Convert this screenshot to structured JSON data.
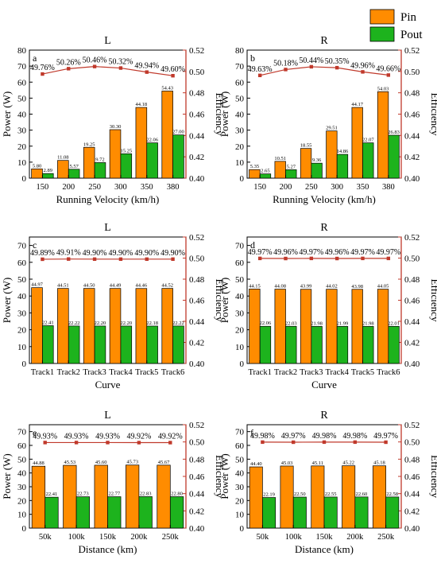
{
  "legend": {
    "items": [
      {
        "label": "Pin",
        "color": "#ff8c00"
      },
      {
        "label": "Pout",
        "color": "#1db31d"
      }
    ]
  },
  "colors": {
    "pin": "#ff8c00",
    "pout": "#1db31d",
    "efficiency": "#c0392b",
    "efficiency_axis": "#c0392b"
  },
  "chart_data": [
    {
      "type": "bar",
      "panel": "a",
      "title": "L",
      "xlabel": "Running Velocity (km/h)",
      "ylabel": "Power (W)",
      "y2label": "Efficiency",
      "ylim": [
        0,
        80
      ],
      "yticks": [
        0,
        10,
        20,
        30,
        40,
        50,
        60,
        70,
        80
      ],
      "y2lim": [
        0.4,
        0.52
      ],
      "y2ticks": [
        "0.40",
        "0.42",
        "0.44",
        "0.46",
        "0.48",
        "0.50",
        "0.52"
      ],
      "categories": [
        "150",
        "200",
        "250",
        "300",
        "350",
        "380"
      ],
      "series": [
        {
          "name": "Pin",
          "values": [
            5.8,
            11.08,
            19.25,
            30.3,
            44.18,
            54.43
          ],
          "labels": [
            "5.80",
            "11.08",
            "19.25",
            "30.30",
            "44.18",
            "54.43"
          ]
        },
        {
          "name": "Pout",
          "values": [
            2.89,
            5.57,
            9.72,
            15.25,
            22.06,
            27.0
          ],
          "labels": [
            "2.89",
            "5.57",
            "9.72",
            "15.25",
            "22.06",
            "27.00"
          ]
        }
      ],
      "efficiency": {
        "values": [
          0.4976,
          0.5026,
          0.5046,
          0.5032,
          0.4994,
          0.496
        ],
        "labels": [
          "49.76%",
          "50.26%",
          "50.46%",
          "50.32%",
          "49.94%",
          "49.60%"
        ]
      }
    },
    {
      "type": "bar",
      "panel": "b",
      "title": "R",
      "xlabel": "Running Velocity (km/h)",
      "ylabel": "Power (W)",
      "y2label": "Efficiency",
      "ylim": [
        0,
        80
      ],
      "yticks": [
        0,
        10,
        20,
        30,
        40,
        50,
        60,
        70,
        80
      ],
      "y2lim": [
        0.4,
        0.52
      ],
      "y2ticks": [
        "0.40",
        "0.42",
        "0.44",
        "0.46",
        "0.48",
        "0.50",
        "0.52"
      ],
      "categories": [
        "150",
        "200",
        "250",
        "300",
        "350",
        "380"
      ],
      "series": [
        {
          "name": "Pin",
          "values": [
            5.35,
            10.51,
            18.55,
            29.51,
            44.17,
            54.03
          ],
          "labels": [
            "5.35",
            "10.51",
            "18.55",
            "29.51",
            "44.17",
            "54.03"
          ]
        },
        {
          "name": "Pout",
          "values": [
            2.65,
            5.27,
            9.36,
            14.86,
            22.07,
            26.83
          ],
          "labels": [
            "2.65",
            "5.27",
            "9.36",
            "14.86",
            "22.07",
            "26.83"
          ]
        }
      ],
      "efficiency": {
        "values": [
          0.4963,
          0.5018,
          0.5044,
          0.5035,
          0.4996,
          0.4966
        ],
        "labels": [
          "49.63%",
          "50.18%",
          "50.44%",
          "50.35%",
          "49.96%",
          "49.66%"
        ]
      }
    },
    {
      "type": "bar",
      "panel": "c",
      "title": "L",
      "xlabel": "Curve",
      "ylabel": "Power (W)",
      "y2label": "Efficiency",
      "ylim": [
        0,
        75
      ],
      "yticks": [
        0,
        10,
        20,
        30,
        40,
        50,
        60,
        70
      ],
      "y2lim": [
        0.4,
        0.52
      ],
      "y2ticks": [
        "0.40",
        "0.42",
        "0.44",
        "0.46",
        "0.48",
        "0.50",
        "0.52"
      ],
      "categories": [
        "Track1",
        "Track2",
        "Track3",
        "Track4",
        "Track5",
        "Track6"
      ],
      "series": [
        {
          "name": "Pin",
          "values": [
            44.97,
            44.51,
            44.5,
            44.49,
            44.46,
            44.52
          ],
          "labels": [
            "44.97",
            "44.51",
            "44.50",
            "44.49",
            "44.46",
            "44.52"
          ]
        },
        {
          "name": "Pout",
          "values": [
            22.41,
            22.22,
            22.2,
            22.2,
            22.18,
            22.22
          ],
          "labels": [
            "22.41",
            "22.22",
            "22.20",
            "22.20",
            "22.18",
            "22.22"
          ]
        }
      ],
      "efficiency": {
        "values": [
          0.4989,
          0.4991,
          0.499,
          0.499,
          0.499,
          0.499
        ],
        "labels": [
          "49.89%",
          "49.91%",
          "49.90%",
          "49.90%",
          "49.90%",
          "49.90%"
        ]
      }
    },
    {
      "type": "bar",
      "panel": "d",
      "title": "R",
      "xlabel": "Curve",
      "ylabel": "Power (W)",
      "y2label": "Efficiency",
      "ylim": [
        0,
        75
      ],
      "yticks": [
        0,
        10,
        20,
        30,
        40,
        50,
        60,
        70
      ],
      "y2lim": [
        0.4,
        0.52
      ],
      "y2ticks": [
        "0.40",
        "0.42",
        "0.44",
        "0.46",
        "0.48",
        "0.50",
        "0.52"
      ],
      "categories": [
        "Track1",
        "Track2",
        "Track3",
        "Track4",
        "Track5",
        "Track6"
      ],
      "series": [
        {
          "name": "Pin",
          "values": [
            44.15,
            44.08,
            43.99,
            44.02,
            43.98,
            44.05
          ],
          "labels": [
            "44.15",
            "44.08",
            "43.99",
            "44.02",
            "43.98",
            "44.05"
          ]
        },
        {
          "name": "Pout",
          "values": [
            22.06,
            22.03,
            21.98,
            21.99,
            21.98,
            22.01
          ],
          "labels": [
            "22.06",
            "22.03",
            "21.98",
            "21.99",
            "21.98",
            "22.01"
          ]
        }
      ],
      "efficiency": {
        "values": [
          0.4997,
          0.4996,
          0.4997,
          0.4996,
          0.4997,
          0.4997
        ],
        "labels": [
          "49.97%",
          "49.96%",
          "49.97%",
          "49.96%",
          "49.97%",
          "49.97%"
        ]
      }
    },
    {
      "type": "bar",
      "panel": "e",
      "title": "L",
      "xlabel": "Distance (km)",
      "ylabel": "Power (W)",
      "y2label": "Efficiency",
      "ylim": [
        0,
        75
      ],
      "yticks": [
        0,
        10,
        20,
        30,
        40,
        50,
        60,
        70
      ],
      "y2lim": [
        0.4,
        0.52
      ],
      "y2ticks": [
        "0.40",
        "0.42",
        "0.44",
        "0.46",
        "0.48",
        "0.50",
        "0.52"
      ],
      "categories": [
        "50k",
        "100k",
        "150k",
        "200k",
        "250k"
      ],
      "series": [
        {
          "name": "Pin",
          "values": [
            44.88,
            45.53,
            45.6,
            45.73,
            45.67
          ],
          "labels": [
            "44.88",
            "45.53",
            "45.60",
            "45.73",
            "45.67"
          ]
        },
        {
          "name": "Pout",
          "values": [
            22.41,
            22.73,
            22.77,
            22.83,
            22.8
          ],
          "labels": [
            "22.41",
            "22.73",
            "22.77",
            "22.83",
            "22.80"
          ]
        }
      ],
      "efficiency": {
        "values": [
          0.4993,
          0.4993,
          0.4993,
          0.4992,
          0.4992
        ],
        "labels": [
          "49.93%",
          "49.93%",
          "49.93%",
          "49.92%",
          "49.92%"
        ]
      }
    },
    {
      "type": "bar",
      "panel": "f",
      "title": "R",
      "xlabel": "Distance (km)",
      "ylabel": "Power (W)",
      "y2label": "Efficiency",
      "ylim": [
        0,
        75
      ],
      "yticks": [
        0,
        10,
        20,
        30,
        40,
        50,
        60,
        70
      ],
      "y2lim": [
        0.4,
        0.52
      ],
      "y2ticks": [
        "0.40",
        "0.42",
        "0.44",
        "0.46",
        "0.48",
        "0.50",
        "0.52"
      ],
      "categories": [
        "50k",
        "100k",
        "150k",
        "200k",
        "250k"
      ],
      "series": [
        {
          "name": "Pin",
          "values": [
            44.4,
            45.03,
            45.11,
            45.22,
            45.18
          ],
          "labels": [
            "44.40",
            "45.03",
            "45.11",
            "45.22",
            "45.18"
          ]
        },
        {
          "name": "Pout",
          "values": [
            22.19,
            22.5,
            22.55,
            22.6,
            22.58
          ],
          "labels": [
            "22.19",
            "22.50",
            "22.55",
            "22.60",
            "22.58"
          ]
        }
      ],
      "efficiency": {
        "values": [
          0.4998,
          0.4997,
          0.4998,
          0.4998,
          0.4997
        ],
        "labels": [
          "49.98%",
          "49.97%",
          "49.98%",
          "49.98%",
          "49.97%"
        ]
      }
    }
  ]
}
